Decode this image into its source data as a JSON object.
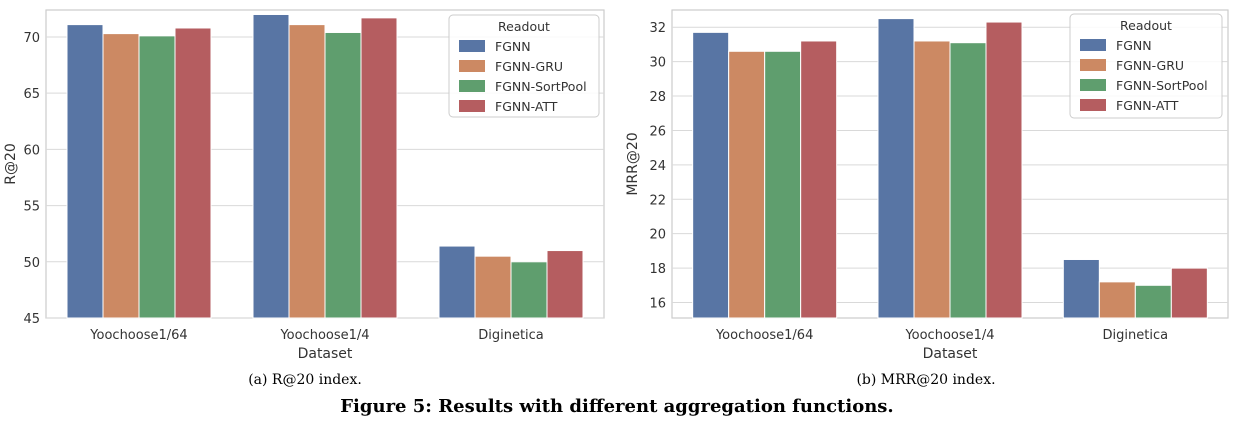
{
  "figure": {
    "caption": "Figure 5: Results with different aggregation functions."
  },
  "colors": {
    "FGNN": "#5875a4",
    "FGNN-GRU": "#cc8963",
    "FGNN-SortPool": "#5f9e6e",
    "FGNN-ATT": "#b55d60",
    "grid": "#d9d9d9",
    "frame": "#cccccc"
  },
  "chart_data": [
    {
      "type": "bar",
      "subcaption": "(a)  R@20 index.",
      "xlabel": "Dataset",
      "ylabel": "R@20",
      "categories": [
        "Yoochoose1/64",
        "Yoochoose1/4",
        "Diginetica"
      ],
      "ylim": [
        45,
        72.4
      ],
      "yticks": [
        45,
        50,
        55,
        60,
        65,
        70
      ],
      "grid": true,
      "legend": {
        "title": "Readout",
        "placement": "top-right"
      },
      "series": [
        {
          "name": "FGNN",
          "values": [
            71.1,
            72.0,
            51.4
          ]
        },
        {
          "name": "FGNN-GRU",
          "values": [
            70.3,
            71.1,
            50.5
          ]
        },
        {
          "name": "FGNN-SortPool",
          "values": [
            70.1,
            70.4,
            50.0
          ]
        },
        {
          "name": "FGNN-ATT",
          "values": [
            70.8,
            71.7,
            51.0
          ]
        }
      ]
    },
    {
      "type": "bar",
      "subcaption": "(b)  MRR@20 index.",
      "xlabel": "Dataset",
      "ylabel": "MRR@20",
      "categories": [
        "Yoochoose1/64",
        "Yoochoose1/4",
        "Diginetica"
      ],
      "ylim": [
        15.1,
        33.0
      ],
      "yticks": [
        16,
        18,
        20,
        22,
        24,
        26,
        28,
        30,
        32
      ],
      "grid": true,
      "legend": {
        "title": "Readout",
        "placement": "top-right"
      },
      "series": [
        {
          "name": "FGNN",
          "values": [
            31.7,
            32.5,
            18.5
          ]
        },
        {
          "name": "FGNN-GRU",
          "values": [
            30.6,
            31.2,
            17.2
          ]
        },
        {
          "name": "FGNN-SortPool",
          "values": [
            30.6,
            31.1,
            17.0
          ]
        },
        {
          "name": "FGNN-ATT",
          "values": [
            31.2,
            32.3,
            18.0
          ]
        }
      ]
    }
  ]
}
